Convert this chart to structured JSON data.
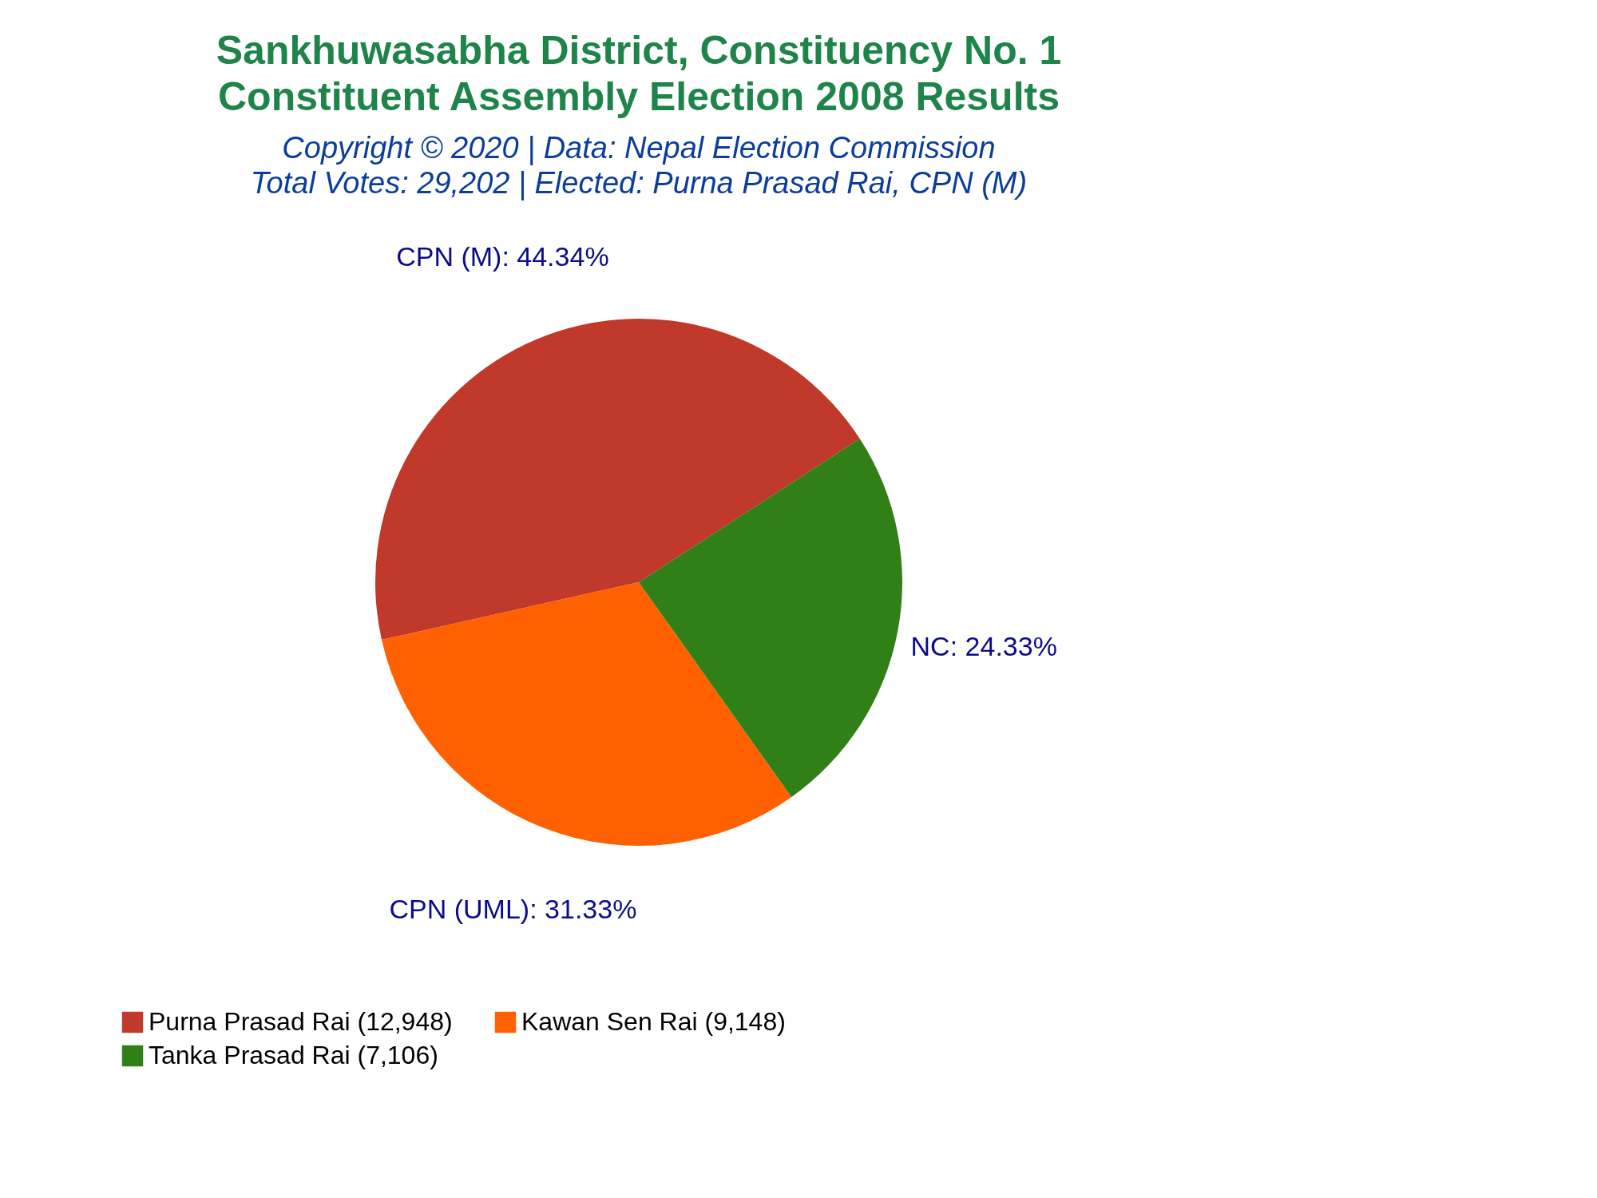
{
  "chart_data": {
    "type": "pie",
    "title": "Sankhuwasabha District, Constituency No. 1\nConstituent Assembly Election 2008 Results",
    "subtitle": "Copyright © 2020 | Data: Nepal Election Commission",
    "annotations": [
      "Total Votes: 29,202 | Elected: Purna Prasad Rai, CPN (M)"
    ],
    "categories": [
      "Purna Prasad Rai (12,948)",
      "Kawan Sen Rai (9,148)",
      "Tanka Prasad Rai (7,106)"
    ],
    "values": [
      44.34,
      31.33,
      24.33
    ],
    "value_labels": [
      "CPN (M): 44.34%",
      "CPN (UML): 31.33%",
      "NC: 24.33%"
    ],
    "colors": [
      "#c0392b",
      "#ff6000",
      "#307f17"
    ],
    "legend": "bottom left"
  }
}
